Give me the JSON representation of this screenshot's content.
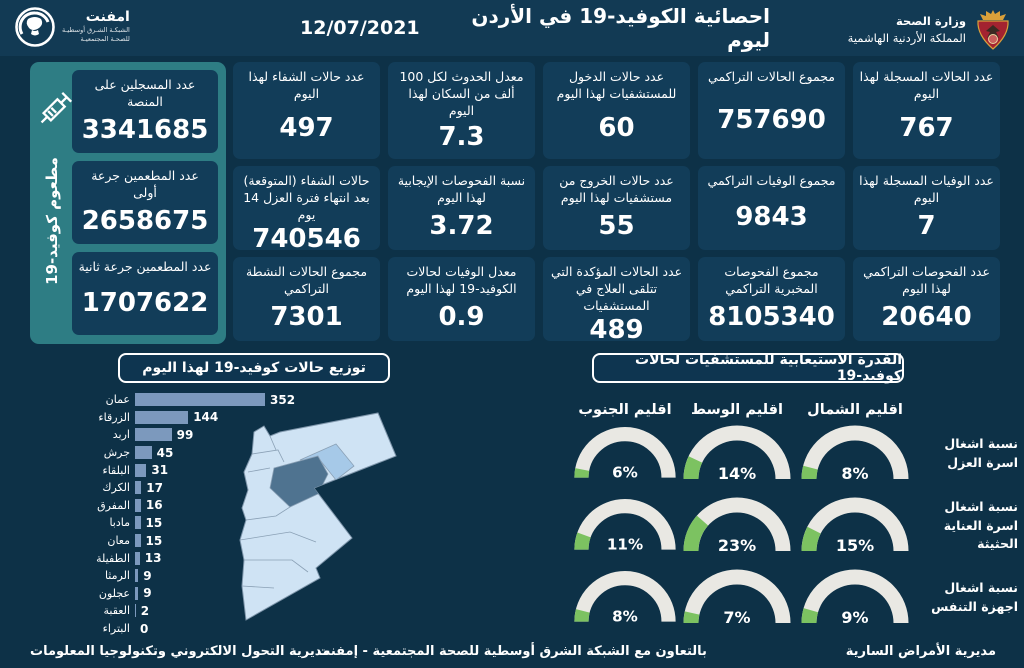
{
  "header": {
    "title": "احصائية الكوفيد-19 في الأردن ليوم",
    "date": "12/07/2021",
    "ministry_line1": "وزارة الصحة",
    "ministry_line2": "المملكة الأردنية الهاشمية",
    "logo_name": "امفنت",
    "logo_sub1": "الشبكـة الشـرق أوسطيـة",
    "logo_sub2": "للصحـة المجتمعيـة"
  },
  "vaccine_panel": {
    "side_label": "مطعوم كوفيد-19",
    "cards": [
      {
        "label": "عدد المسجلين على المنصة",
        "value": "3341685"
      },
      {
        "label": "عدد المطعمين جرعة أولى",
        "value": "2658675"
      },
      {
        "label": "عدد المطعمين جرعة ثانية",
        "value": "1707622"
      }
    ]
  },
  "stat_cards": [
    {
      "label": "عدد الحالات المسجلة لهذا اليوم",
      "value": "767"
    },
    {
      "label": "مجموع الحالات التراكمي",
      "value": "757690"
    },
    {
      "label": "عدد حالات الدخول للمستشفيات لهذا اليوم",
      "value": "60"
    },
    {
      "label": "معدل الحدوث لكل 100 ألف من السكان لهذا اليوم",
      "value": "7.3"
    },
    {
      "label": "عدد حالات الشفاء لهذا اليوم",
      "value": "497"
    },
    {
      "label": "عدد الوفيات المسجلة لهذا اليوم",
      "value": "7"
    },
    {
      "label": "مجموع الوفيات التراكمي",
      "value": "9843"
    },
    {
      "label": "عدد حالات الخروج من مستشفيات لهذا اليوم",
      "value": "55"
    },
    {
      "label": "نسبة الفحوصات الإيجابية لهذا اليوم",
      "value": "3.72"
    },
    {
      "label": "حالات الشفاء (المتوقعة) بعد انتهاء فترة العزل 14 يوم",
      "value": "740546"
    },
    {
      "label": "عدد الفحوصات التراكمي لهذا اليوم",
      "value": "20640"
    },
    {
      "label": "مجموع الفحوصات المخبرية التراكمي",
      "value": "8105340"
    },
    {
      "label": "عدد الحالات المؤكدة التي تتلقى العلاج في المستشفيات",
      "value": "489"
    },
    {
      "label": "معدل الوفيات لحالات الكوفيد-19 لهذا اليوم",
      "value": "0.9"
    },
    {
      "label": "مجموع الحالات النشطة التراكمي",
      "value": "7301"
    }
  ],
  "chart_data": [
    {
      "type": "bar",
      "title": "توزيع حالات كوفيد-19 لهذا اليوم",
      "orientation": "horizontal",
      "categories": [
        "عمان",
        "الزرقاء",
        "اربد",
        "جرش",
        "البلقاء",
        "الكرك",
        "المفرق",
        "مادبا",
        "معان",
        "الطفيلة",
        "الرمثا",
        "عجلون",
        "العقبة",
        "البتراء"
      ],
      "values": [
        352,
        144,
        99,
        45,
        31,
        17,
        16,
        15,
        15,
        13,
        9,
        9,
        2,
        0
      ],
      "xlim": [
        0,
        352
      ],
      "grid": false,
      "data_labels": true
    },
    {
      "type": "gauge",
      "title": "القدرة الاستيعابية للمستشفيات لحالات كوفيد-19",
      "unit": "%",
      "range": [
        0,
        100
      ],
      "regions": [
        "اقليم الشمال",
        "اقليم الوسط",
        "اقليم الجنوب"
      ],
      "rows": [
        {
          "label": "نسبة اشغال اسرة العزل",
          "values": [
            8,
            14,
            6
          ]
        },
        {
          "label": "نسبة اشغال اسرة العناية الحثيثة",
          "values": [
            15,
            23,
            11
          ]
        },
        {
          "label": "نسبة اشغال اجهزة التنفس",
          "values": [
            9,
            7,
            8
          ]
        }
      ]
    }
  ],
  "footer": {
    "right": "مديرية الأمراض السارية",
    "center": "بالتعاون مع الشبكة الشرق أوسطية للصحة المجتمعية - إمفنت",
    "left": "مديرية التحول الالكتروني وتكنولوجيا المعلومات"
  },
  "colors": {
    "page_bg": "#0d3147",
    "header_bg": "#123a54",
    "card_bg": "#123d59",
    "teal_panel": "#2e7d84",
    "bar": "#7c99bd",
    "gauge_track": "#e9e8e3",
    "gauge_fill": "#7cc261",
    "map_light": "#cfe3f4",
    "map_medium": "#a6c9e8",
    "map_dark": "#4f7390"
  }
}
